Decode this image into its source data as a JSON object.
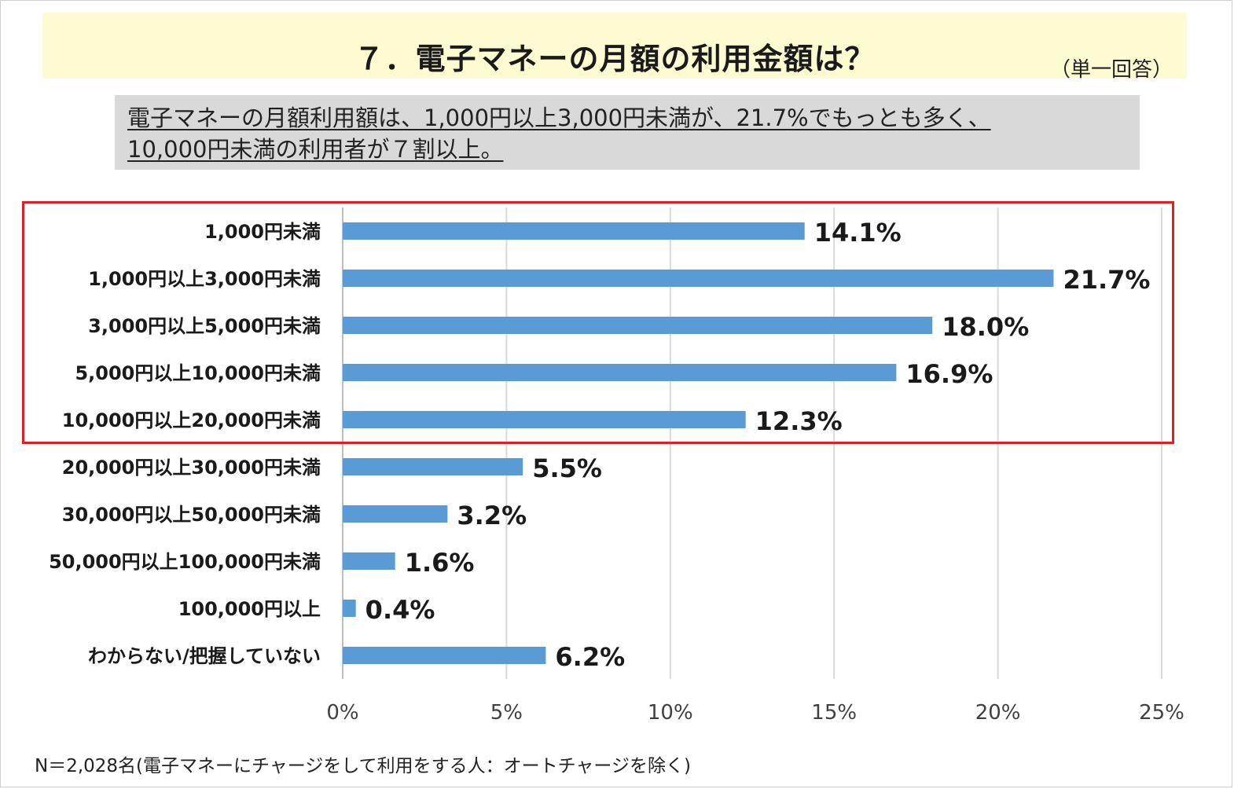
{
  "title": {
    "text": "７．電子マネーの月額の利用金額は？",
    "note": "（単一回答）"
  },
  "summary": {
    "line1": "電子マネーの月額利用額は、1,000円以上3,000円未満が、21.7%でもっとも多く、",
    "line2": "10,000円未満の利用者が７割以上。"
  },
  "footnote": "N＝2,028名(電子マネーにチャージをして利用をする人：オートチャージを除く)",
  "colors": {
    "bar": "#5b9bd5",
    "highlight": "#e41e1e",
    "banner": "#fdfbd2",
    "summary_bg": "#d9d9d9"
  },
  "chart_data": {
    "type": "bar",
    "orientation": "horizontal",
    "categories": [
      "1,000円未満",
      "1,000円以上3,000円未満",
      "3,000円以上5,000円未満",
      "5,000円以上10,000円未満",
      "10,000円以上20,000円未満",
      "20,000円以上30,000円未満",
      "30,000円以上50,000円未満",
      "50,000円以上100,000円未満",
      "100,000円以上",
      "わからない/把握していない"
    ],
    "values": [
      14.1,
      21.7,
      18.0,
      16.9,
      12.3,
      5.5,
      3.2,
      1.6,
      0.4,
      6.2
    ],
    "data_labels": [
      "14.1%",
      "21.7%",
      "18.0%",
      "16.9%",
      "12.3%",
      "5.5%",
      "3.2%",
      "1.6%",
      "0.4%",
      "6.2%"
    ],
    "xlim": [
      0,
      25
    ],
    "xticks": [
      0,
      5,
      10,
      15,
      20,
      25
    ],
    "xtick_labels": [
      "0%",
      "5%",
      "10%",
      "15%",
      "20%",
      "25%"
    ],
    "grid": true,
    "highlighted_categories": [
      0,
      1,
      2,
      3,
      4
    ]
  }
}
